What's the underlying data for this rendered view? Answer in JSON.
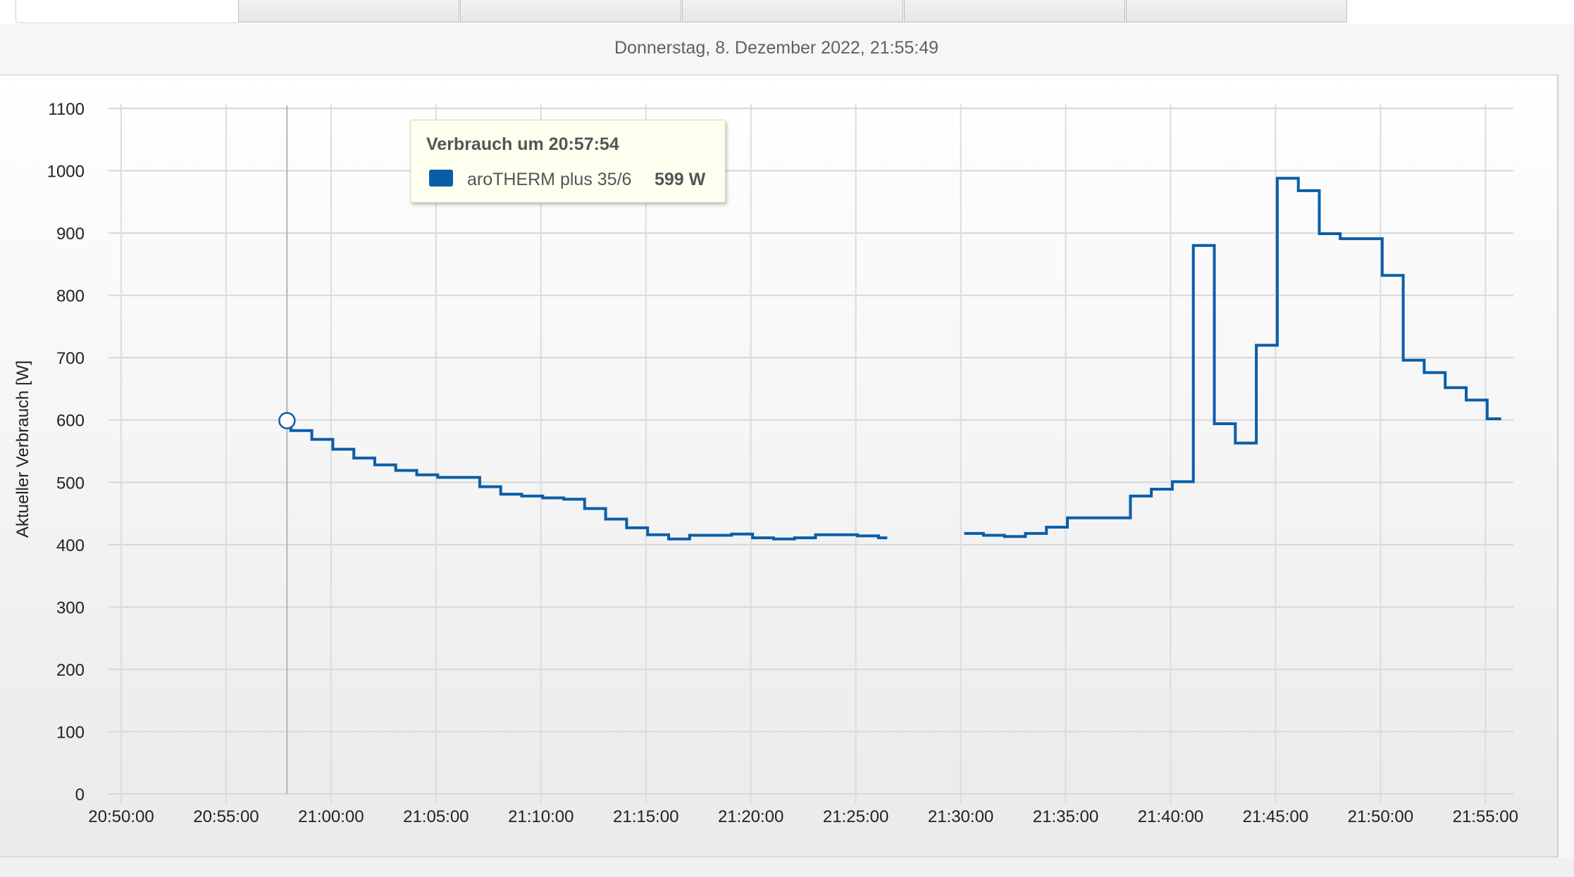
{
  "header": {
    "timestamp": "Donnerstag, 8. Dezember 2022, 21:55:49"
  },
  "tooltip": {
    "title": "Verbrauch um 20:57:54",
    "series_name": "aroTHERM plus 35/6",
    "value": "599 W",
    "swatch_color": "#0a5ea8"
  },
  "chart_data": {
    "type": "line",
    "step": true,
    "title": "",
    "xlabel": "",
    "ylabel": "Aktueller Verbrauch [W]",
    "ylim": [
      0,
      1100
    ],
    "yticks": [
      "0",
      "100",
      "200",
      "300",
      "400",
      "500",
      "600",
      "700",
      "800",
      "900",
      "1000",
      "1100"
    ],
    "xlim": [
      "20:50:00",
      "21:56:20"
    ],
    "xticks": [
      "20:50:00",
      "20:55:00",
      "21:00:00",
      "21:05:00",
      "21:10:00",
      "21:15:00",
      "21:20:00",
      "21:25:00",
      "21:30:00",
      "21:35:00",
      "21:40:00",
      "21:45:00",
      "21:50:00",
      "21:55:00"
    ],
    "grid": true,
    "line_color": "#0a5ea8",
    "hover": {
      "time": "20:57:54",
      "value": 599
    },
    "series": [
      {
        "name": "aroTHERM plus 35/6",
        "segments": [
          [
            [
              "20:57:54",
              599
            ],
            [
              "20:58:05",
              583
            ],
            [
              "20:59:05",
              569
            ],
            [
              "21:00:05",
              553
            ],
            [
              "21:01:05",
              539
            ],
            [
              "21:02:05",
              528
            ],
            [
              "21:03:05",
              519
            ],
            [
              "21:04:05",
              512
            ],
            [
              "21:05:05",
              508
            ],
            [
              "21:07:05",
              493
            ],
            [
              "21:08:05",
              481
            ],
            [
              "21:09:05",
              478
            ],
            [
              "21:10:05",
              475
            ],
            [
              "21:11:05",
              473
            ],
            [
              "21:12:05",
              458
            ],
            [
              "21:13:05",
              441
            ],
            [
              "21:14:05",
              427
            ],
            [
              "21:15:05",
              416
            ],
            [
              "21:16:05",
              409
            ],
            [
              "21:17:05",
              415
            ],
            [
              "21:19:05",
              417
            ],
            [
              "21:20:05",
              411
            ],
            [
              "21:21:05",
              409
            ],
            [
              "21:22:05",
              411
            ],
            [
              "21:23:05",
              416
            ],
            [
              "21:25:05",
              414
            ],
            [
              "21:26:05",
              411
            ],
            [
              "21:26:30",
              411
            ]
          ],
          [
            [
              "21:30:10",
              418
            ],
            [
              "21:31:05",
              415
            ],
            [
              "21:32:05",
              413
            ],
            [
              "21:33:05",
              418
            ],
            [
              "21:34:05",
              428
            ],
            [
              "21:35:05",
              443
            ],
            [
              "21:38:05",
              478
            ],
            [
              "21:39:05",
              489
            ],
            [
              "21:40:05",
              501
            ],
            [
              "21:41:05",
              880
            ],
            [
              "21:42:05",
              594
            ],
            [
              "21:43:05",
              563
            ],
            [
              "21:44:05",
              720
            ],
            [
              "21:45:05",
              988
            ],
            [
              "21:46:05",
              968
            ],
            [
              "21:47:05",
              899
            ],
            [
              "21:48:05",
              891
            ],
            [
              "21:50:05",
              832
            ],
            [
              "21:51:05",
              696
            ],
            [
              "21:52:05",
              676
            ],
            [
              "21:53:05",
              652
            ],
            [
              "21:54:05",
              632
            ],
            [
              "21:55:05",
              602
            ],
            [
              "21:55:45",
              602
            ]
          ]
        ]
      }
    ]
  }
}
